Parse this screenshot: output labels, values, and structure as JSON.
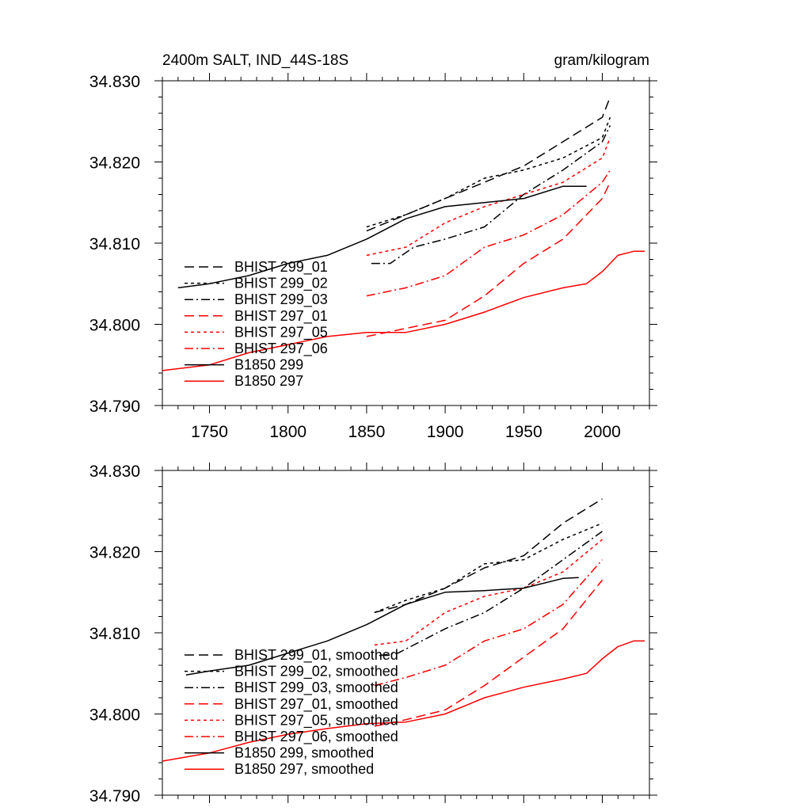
{
  "chart_data": [
    {
      "type": "line",
      "title_left": "2400m SALT, IND_44S-18S",
      "title_right": "gram/kilogram",
      "xlim": [
        1720,
        2030
      ],
      "ylim": [
        34.79,
        34.83
      ],
      "x_ticks": [
        1750,
        1800,
        1850,
        1900,
        1950,
        2000
      ],
      "x_tick_labels": [
        "1750",
        "1800",
        "1850",
        "1900",
        "1950",
        "2000"
      ],
      "y_ticks": [
        34.79,
        34.8,
        34.81,
        34.82,
        34.83
      ],
      "y_tick_labels": [
        "34.790",
        "34.800",
        "34.810",
        "34.820",
        "34.830"
      ],
      "grid": false,
      "legend_position": "lower-left",
      "series": [
        {
          "name": "BHIST 299_01",
          "color": "#000000",
          "dash": "long-dash",
          "x": [
            1850,
            1875,
            1900,
            1925,
            1950,
            1975,
            2000,
            2005
          ],
          "y": [
            34.8115,
            34.8135,
            34.8155,
            34.8175,
            34.8195,
            34.8225,
            34.8255,
            34.828
          ]
        },
        {
          "name": "BHIST 299_02",
          "color": "#000000",
          "dash": "short-dash",
          "x": [
            1850,
            1875,
            1900,
            1925,
            1950,
            1975,
            2000,
            2005
          ],
          "y": [
            34.812,
            34.8135,
            34.8155,
            34.818,
            34.819,
            34.8205,
            34.823,
            34.8255
          ]
        },
        {
          "name": "BHIST 299_03",
          "color": "#000000",
          "dash": "dash-dot",
          "x": [
            1853,
            1865,
            1880,
            1900,
            1925,
            1950,
            1975,
            2000,
            2005
          ],
          "y": [
            34.8075,
            34.8075,
            34.8095,
            34.8105,
            34.812,
            34.816,
            34.819,
            34.8225,
            34.8245
          ]
        },
        {
          "name": "BHIST 297_01",
          "color": "#ff0000",
          "dash": "long-dash",
          "x": [
            1850,
            1875,
            1900,
            1925,
            1950,
            1975,
            2000,
            2005
          ],
          "y": [
            34.7985,
            34.7995,
            34.8005,
            34.8035,
            34.8075,
            34.8105,
            34.8155,
            34.8175
          ]
        },
        {
          "name": "BHIST 297_05",
          "color": "#ff0000",
          "dash": "short-dash",
          "x": [
            1850,
            1875,
            1900,
            1925,
            1950,
            1975,
            2000,
            2005
          ],
          "y": [
            34.8085,
            34.8095,
            34.8125,
            34.8145,
            34.816,
            34.8175,
            34.8205,
            34.823
          ]
        },
        {
          "name": "BHIST 297_06",
          "color": "#ff0000",
          "dash": "dash-dot",
          "x": [
            1850,
            1875,
            1900,
            1925,
            1950,
            1975,
            2000,
            2005
          ],
          "y": [
            34.8035,
            34.8045,
            34.806,
            34.8095,
            34.811,
            34.8135,
            34.8175,
            34.819
          ]
        },
        {
          "name": "B1850 299",
          "color": "#000000",
          "dash": "solid",
          "x": [
            1730,
            1750,
            1775,
            1800,
            1825,
            1850,
            1875,
            1900,
            1925,
            1950,
            1975,
            1990
          ],
          "y": [
            34.8045,
            34.805,
            34.806,
            34.8075,
            34.8085,
            34.8105,
            34.813,
            34.8145,
            34.815,
            34.8155,
            34.817,
            34.817
          ]
        },
        {
          "name": "B1850 297",
          "color": "#ff0000",
          "dash": "solid",
          "x": [
            1720,
            1750,
            1775,
            1800,
            1825,
            1850,
            1875,
            1900,
            1925,
            1950,
            1975,
            1990,
            2000,
            2010,
            2020,
            2027
          ],
          "y": [
            34.7943,
            34.795,
            34.7965,
            34.7975,
            34.7985,
            34.799,
            34.799,
            34.8,
            34.8015,
            34.8033,
            34.8045,
            34.805,
            34.8065,
            34.8085,
            34.809,
            34.809
          ]
        }
      ]
    },
    {
      "type": "line",
      "xlim": [
        1720,
        2030
      ],
      "ylim": [
        34.79,
        34.83
      ],
      "x_ticks": [
        1750,
        1800,
        1850,
        1900,
        1950,
        2000
      ],
      "y_ticks": [
        34.79,
        34.8,
        34.81,
        34.82,
        34.83
      ],
      "y_tick_labels": [
        "34.790",
        "34.800",
        "34.810",
        "34.820",
        "34.830"
      ],
      "grid": false,
      "legend_position": "lower-left",
      "series": [
        {
          "name": "BHIST 299_01, smoothed",
          "color": "#000000",
          "dash": "long-dash",
          "x": [
            1855,
            1875,
            1900,
            1925,
            1950,
            1975,
            2000
          ],
          "y": [
            34.8125,
            34.8135,
            34.8155,
            34.818,
            34.8195,
            34.8235,
            34.8265
          ]
        },
        {
          "name": "BHIST 299_02, smoothed",
          "color": "#000000",
          "dash": "short-dash",
          "x": [
            1855,
            1875,
            1900,
            1925,
            1950,
            1975,
            2000
          ],
          "y": [
            34.8125,
            34.814,
            34.8155,
            34.8185,
            34.819,
            34.8215,
            34.8235
          ]
        },
        {
          "name": "BHIST 299_03, smoothed",
          "color": "#000000",
          "dash": "dash-dot",
          "x": [
            1858,
            1870,
            1885,
            1900,
            1925,
            1950,
            1975,
            2000
          ],
          "y": [
            34.8072,
            34.8075,
            34.809,
            34.8105,
            34.8125,
            34.8155,
            34.819,
            34.8225
          ]
        },
        {
          "name": "BHIST 297_01, smoothed",
          "color": "#ff0000",
          "dash": "long-dash",
          "x": [
            1855,
            1875,
            1900,
            1925,
            1950,
            1975,
            2000
          ],
          "y": [
            34.7985,
            34.7993,
            34.8005,
            34.8035,
            34.807,
            34.8105,
            34.8165
          ]
        },
        {
          "name": "BHIST 297_05, smoothed",
          "color": "#ff0000",
          "dash": "short-dash",
          "x": [
            1855,
            1875,
            1900,
            1925,
            1950,
            1975,
            2000
          ],
          "y": [
            34.8085,
            34.809,
            34.8125,
            34.8145,
            34.8155,
            34.8175,
            34.8215
          ]
        },
        {
          "name": "BHIST 297_06, smoothed",
          "color": "#ff0000",
          "dash": "dash-dot",
          "x": [
            1855,
            1875,
            1900,
            1925,
            1950,
            1975,
            2000
          ],
          "y": [
            34.8035,
            34.8045,
            34.806,
            34.809,
            34.8105,
            34.8135,
            34.819
          ]
        },
        {
          "name": "B1850 299, smoothed",
          "color": "#000000",
          "dash": "solid",
          "x": [
            1735,
            1750,
            1775,
            1800,
            1825,
            1850,
            1875,
            1900,
            1925,
            1950,
            1975,
            1985
          ],
          "y": [
            34.8048,
            34.8053,
            34.806,
            34.8075,
            34.809,
            34.811,
            34.8135,
            34.815,
            34.8152,
            34.8155,
            34.8167,
            34.8168
          ]
        },
        {
          "name": "B1850 297, smoothed",
          "color": "#ff0000",
          "dash": "solid",
          "x": [
            1720,
            1750,
            1775,
            1800,
            1825,
            1850,
            1875,
            1900,
            1925,
            1950,
            1975,
            1990,
            2000,
            2010,
            2020,
            2027
          ],
          "y": [
            34.7942,
            34.7952,
            34.7965,
            34.7975,
            34.7982,
            34.7988,
            34.799,
            34.8,
            34.802,
            34.8033,
            34.8043,
            34.805,
            34.8068,
            34.8083,
            34.809,
            34.809
          ]
        }
      ]
    }
  ]
}
